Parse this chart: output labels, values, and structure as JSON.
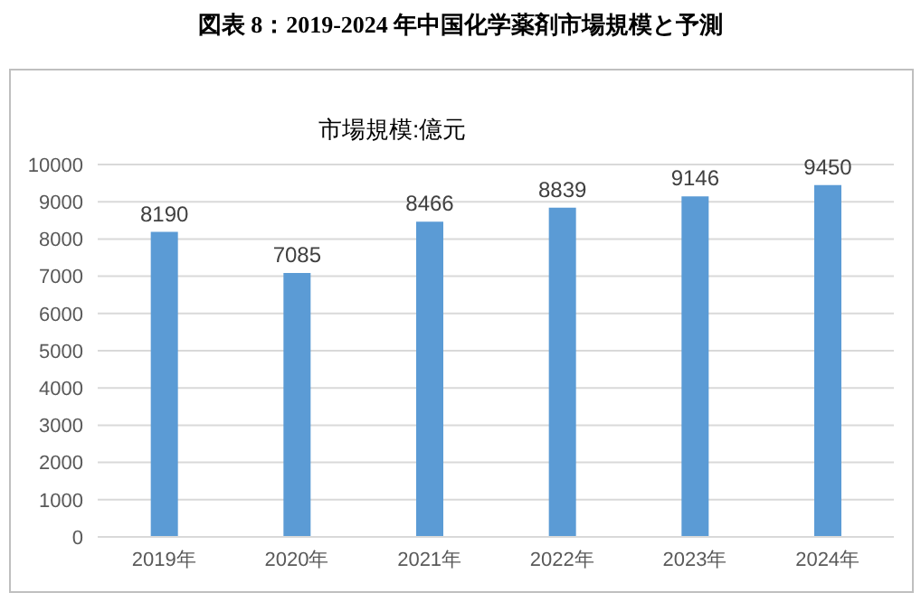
{
  "chart_data": {
    "type": "bar",
    "title": "図表 8：2019-2024 年中国化学薬剤市場規模と予測",
    "subtitle": "市場規模:億元",
    "categories": [
      "2019年",
      "2020年",
      "2021年",
      "2022年",
      "2023年",
      "2024年"
    ],
    "values": [
      8190,
      7085,
      8466,
      8839,
      9146,
      9450
    ],
    "color": "#5b9bd5",
    "ylim": [
      0,
      10000
    ],
    "yticks": [
      0,
      1000,
      2000,
      3000,
      4000,
      5000,
      6000,
      7000,
      8000,
      9000,
      10000
    ],
    "grid": "y",
    "data_labels": true
  }
}
